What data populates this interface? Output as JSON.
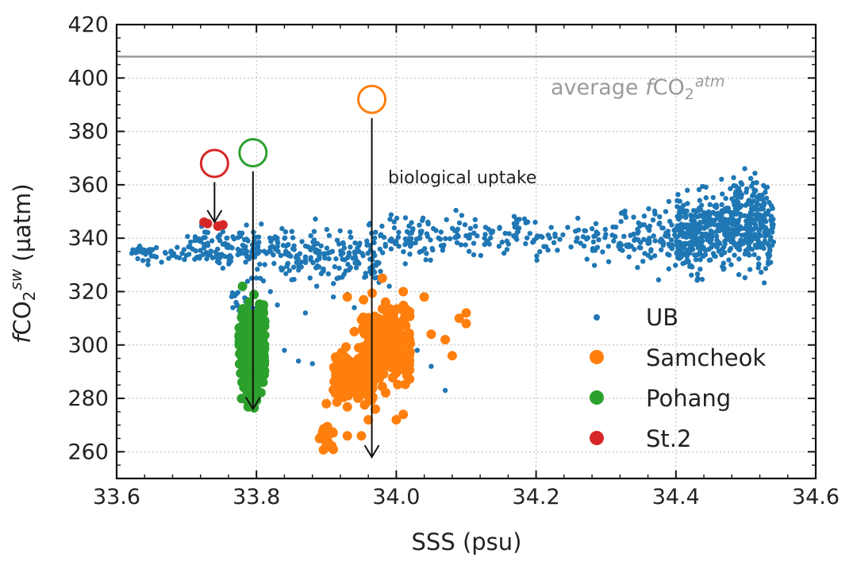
{
  "chart_data": {
    "type": "scatter",
    "xlabel": "SSS (psu)",
    "ylabel": "fCO2sw (µatm)",
    "ylabel_parts": {
      "italic": "f",
      "base": "CO",
      "sub": "2",
      "sup": "sw",
      "unit": " (µatm)"
    },
    "xlim": [
      33.6,
      34.6
    ],
    "ylim": [
      250,
      420
    ],
    "x_ticks": [
      33.6,
      33.8,
      34.0,
      34.2,
      34.4,
      34.6
    ],
    "x_tick_labels": [
      "33.6",
      "33.8",
      "34.0",
      "34.2",
      "34.4",
      "34.6"
    ],
    "y_ticks": [
      260,
      280,
      300,
      320,
      340,
      360,
      380,
      400,
      420
    ],
    "y_tick_labels": [
      "260",
      "280",
      "300",
      "320",
      "340",
      "360",
      "380",
      "400",
      "420"
    ],
    "grid": true,
    "legend_position": "lower-right",
    "reference_line": {
      "y": 408,
      "label": "average fCO2atm",
      "label_parts": {
        "prefix": "average ",
        "italic": "f",
        "base": "CO",
        "sub": "2",
        "sup": "atm"
      },
      "color": "#9a9a9a"
    },
    "annotation": {
      "text": "biological uptake",
      "x": 34.12,
      "y": 362
    },
    "series": [
      {
        "name": "UB",
        "color": "#1f77b4",
        "marker": "small-dot",
        "clusters": [
          {
            "x_range": [
              33.62,
              33.7
            ],
            "y_center": 334,
            "y_spread": 2,
            "n": 40
          },
          {
            "x_range": [
              33.7,
              33.8
            ],
            "y_center": 336,
            "y_spread": 4,
            "n": 110
          },
          {
            "x_range": [
              33.8,
              33.98
            ],
            "y_center": 334,
            "y_spread": 5,
            "n": 200
          },
          {
            "x_range": [
              33.96,
              34.2
            ],
            "y_center": 341,
            "y_spread": 4,
            "n": 160
          },
          {
            "x_range": [
              34.2,
              34.32
            ],
            "y_center": 340,
            "y_spread": 4,
            "n": 60
          },
          {
            "x_range": [
              34.32,
              34.44
            ],
            "y_center": 340,
            "y_spread": 6,
            "n": 140
          },
          {
            "x_range": [
              34.4,
              34.54
            ],
            "y_center": 343,
            "y_spread": 7,
            "n": 500
          },
          {
            "x_range": [
              34.48,
              34.53
            ],
            "y_center": 355,
            "y_spread": 4,
            "n": 50
          },
          {
            "x_range": [
              33.76,
              33.8
            ],
            "y_center": 318,
            "y_spread": 4,
            "n": 25
          }
        ],
        "points": [
          [
            33.81,
            324
          ],
          [
            33.82,
            320
          ],
          [
            33.83,
            315
          ],
          [
            33.84,
            298
          ],
          [
            33.86,
            294
          ],
          [
            33.88,
            293
          ],
          [
            33.91,
            318
          ],
          [
            33.93,
            319
          ],
          [
            33.94,
            314
          ],
          [
            34.03,
            298
          ],
          [
            34.05,
            292
          ],
          [
            34.07,
            283
          ],
          [
            34.02,
            310
          ],
          [
            33.99,
            322
          ],
          [
            33.87,
            312
          ]
        ]
      },
      {
        "name": "Samcheok",
        "color": "#ff7f0e",
        "marker": "dot",
        "clusters": [
          {
            "x_range": [
              33.91,
              33.97
            ],
            "y_center": 288,
            "y_spread": 4,
            "n": 220
          },
          {
            "x_range": [
              33.95,
              34.02
            ],
            "y_center": 300,
            "y_spread": 7,
            "n": 220
          },
          {
            "x_range": [
              33.89,
              33.91
            ],
            "y_center": 266,
            "y_spread": 3,
            "n": 25
          }
        ],
        "points": [
          [
            33.93,
            318
          ],
          [
            33.94,
            305
          ],
          [
            33.95,
            266
          ],
          [
            33.96,
            272
          ],
          [
            33.97,
            276
          ],
          [
            34.0,
            272
          ],
          [
            34.01,
            274
          ],
          [
            34.04,
            318
          ],
          [
            34.05,
            304
          ],
          [
            34.07,
            302
          ],
          [
            34.09,
            310
          ],
          [
            34.1,
            312
          ],
          [
            34.1,
            308
          ],
          [
            34.08,
            296
          ],
          [
            33.98,
            325
          ],
          [
            33.92,
            293
          ],
          [
            33.9,
            278
          ],
          [
            33.93,
            266
          ],
          [
            33.96,
            281
          ],
          [
            34.01,
            320
          ]
        ]
      },
      {
        "name": "Pohang",
        "color": "#2ca02c",
        "marker": "dot",
        "clusters": [
          {
            "x_range": [
              33.775,
              33.812
            ],
            "y_center": 300,
            "y_spread": 7,
            "n": 320
          },
          {
            "x_range": [
              33.785,
              33.8
            ],
            "y_center": 282,
            "y_spread": 3,
            "n": 30
          }
        ],
        "points": [
          [
            33.78,
            322
          ],
          [
            33.79,
            278
          ],
          [
            33.795,
            277
          ],
          [
            33.81,
            315
          ]
        ]
      },
      {
        "name": "St.2",
        "color": "#d62728",
        "marker": "dot",
        "clusters": [],
        "points": [
          [
            33.725,
            346
          ],
          [
            33.73,
            345.5
          ],
          [
            33.745,
            344.5
          ],
          [
            33.752,
            345
          ]
        ]
      }
    ],
    "open_circles": [
      {
        "name": "St.2 reference",
        "x": 33.74,
        "y": 368,
        "color": "#d62728"
      },
      {
        "name": "Pohang reference",
        "x": 33.795,
        "y": 372,
        "color": "#2ca02c"
      },
      {
        "name": "Samcheok reference",
        "x": 33.965,
        "y": 392,
        "color": "#ff7f0e"
      }
    ],
    "arrows": [
      {
        "from": [
          33.74,
          361
        ],
        "to": [
          33.74,
          346
        ]
      },
      {
        "from": [
          33.795,
          365
        ],
        "to": [
          33.795,
          276
        ]
      },
      {
        "from": [
          33.965,
          385
        ],
        "to": [
          33.965,
          258
        ]
      }
    ]
  }
}
